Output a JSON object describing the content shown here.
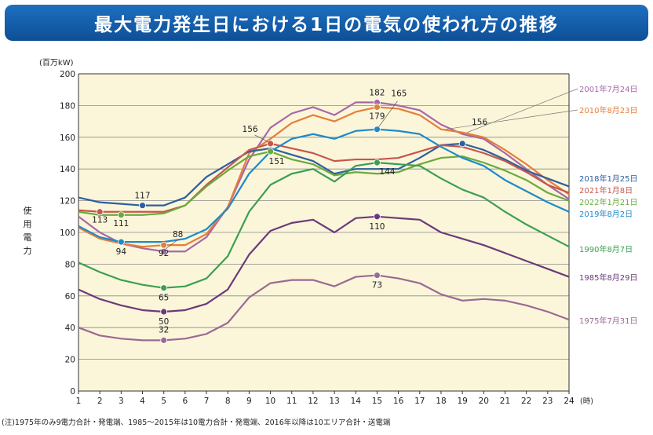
{
  "title": "最大電力発生日における1日の電気の使われ方の推移",
  "footnote": "(注)1975年のみ9電力合計・発電端、1985～2015年は10電力合計・発電端、2016年以降は10エリア合計・送電端",
  "chart_data": {
    "type": "line",
    "unit": "(百万kW)",
    "ylabel": "使用電力",
    "xlabel_unit": "(時)",
    "x": [
      1,
      2,
      3,
      4,
      5,
      6,
      7,
      8,
      9,
      10,
      11,
      12,
      13,
      14,
      15,
      16,
      17,
      18,
      19,
      20,
      21,
      22,
      23,
      24
    ],
    "ylim": [
      0,
      200
    ],
    "yticks": [
      0,
      20,
      40,
      60,
      80,
      100,
      120,
      140,
      160,
      180,
      200
    ],
    "grid": "horizontal",
    "series": [
      {
        "name": "2001年7月24日",
        "color": "#a768a8",
        "values": [
          110,
          100,
          93,
          90,
          88,
          88,
          97,
          116,
          146,
          166,
          175,
          179,
          174,
          182,
          182,
          180,
          177,
          168,
          162,
          159,
          150,
          140,
          130,
          121
        ]
      },
      {
        "name": "2010年8月23日",
        "color": "#e67e3b",
        "values": [
          103,
          96,
          93,
          91,
          92,
          92,
          99,
          116,
          150,
          159,
          169,
          174,
          170,
          176,
          179,
          178,
          174,
          165,
          163,
          160,
          152,
          143,
          133,
          124
        ]
      },
      {
        "name": "2018年1月25日",
        "color": "#2e5f9e",
        "values": [
          122,
          119,
          118,
          117,
          117,
          122,
          135,
          143,
          151,
          153,
          149,
          145,
          137,
          140,
          140,
          140,
          147,
          155,
          156,
          152,
          146,
          139,
          134,
          129
        ]
      },
      {
        "name": "2021年1月8日",
        "color": "#c5574e",
        "values": [
          114,
          113,
          113,
          113,
          113,
          117,
          130,
          141,
          152,
          156,
          153,
          150,
          145,
          146,
          146,
          147,
          151,
          155,
          154,
          150,
          145,
          138,
          130,
          125
        ]
      },
      {
        "name": "2022年1月21日",
        "color": "#6aaa3d",
        "values": [
          113,
          111,
          111,
          111,
          112,
          117,
          129,
          139,
          148,
          151,
          146,
          143,
          136,
          138,
          137,
          138,
          143,
          147,
          148,
          144,
          139,
          133,
          125,
          120
        ]
      },
      {
        "name": "2019年8月2日",
        "color": "#1e8ac9",
        "values": [
          104,
          97,
          94,
          94,
          94,
          96,
          102,
          115,
          137,
          151,
          159,
          162,
          159,
          164,
          165,
          164,
          162,
          154,
          147,
          142,
          133,
          126,
          119,
          113
        ]
      },
      {
        "name": "1990年8月7日",
        "color": "#3c9e53",
        "values": [
          81,
          75,
          70,
          67,
          65,
          66,
          71,
          85,
          113,
          130,
          137,
          140,
          132,
          142,
          144,
          143,
          142,
          134,
          127,
          122,
          113,
          105,
          98,
          91
        ]
      },
      {
        "name": "1985年8月29日",
        "color": "#6b3a7a",
        "values": [
          64,
          58,
          54,
          51,
          50,
          51,
          55,
          64,
          86,
          101,
          106,
          108,
          100,
          109,
          110,
          109,
          108,
          100,
          96,
          92,
          87,
          82,
          77,
          72
        ]
      },
      {
        "name": "1975年7月31日",
        "color": "#9a6a93",
        "values": [
          40,
          35,
          33,
          32,
          32,
          33,
          36,
          43,
          59,
          68,
          70,
          70,
          66,
          72,
          73,
          71,
          68,
          61,
          57,
          58,
          57,
          54,
          50,
          45
        ]
      }
    ],
    "markers": [
      {
        "series": 0,
        "x": 15,
        "label": "182"
      },
      {
        "series": 0,
        "x": 5,
        "label": "88"
      },
      {
        "series": 1,
        "x": 15,
        "label": "179"
      },
      {
        "series": 1,
        "x": 5,
        "label": "92"
      },
      {
        "series": 2,
        "x": 4,
        "label": "117"
      },
      {
        "series": 2,
        "x": 19,
        "label": "156"
      },
      {
        "series": 3,
        "x": 2,
        "label": "113"
      },
      {
        "series": 3,
        "x": 10,
        "label": "156"
      },
      {
        "series": 4,
        "x": 3,
        "label": "111"
      },
      {
        "series": 4,
        "x": 10,
        "label": "151"
      },
      {
        "series": 5,
        "x": 3,
        "label": "94"
      },
      {
        "series": 5,
        "x": 15,
        "label": "165"
      },
      {
        "series": 6,
        "x": 5,
        "label": "65"
      },
      {
        "series": 6,
        "x": 15,
        "label": "144"
      },
      {
        "series": 7,
        "x": 5,
        "label": "50"
      },
      {
        "series": 7,
        "x": 15,
        "label": "110"
      },
      {
        "series": 8,
        "x": 5,
        "label": "32"
      },
      {
        "series": 8,
        "x": 15,
        "label": "73"
      }
    ]
  }
}
